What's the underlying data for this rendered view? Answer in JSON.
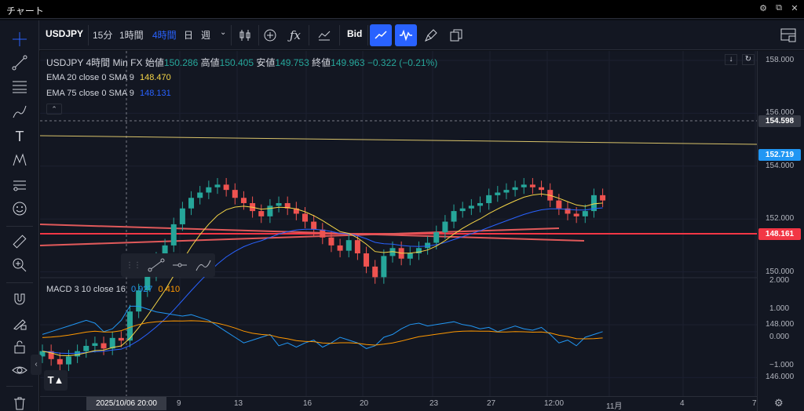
{
  "window": {
    "title": "チャート",
    "controls": [
      "⚙",
      "⧉",
      "✕"
    ]
  },
  "toolbar": {
    "symbol": "USDJPY",
    "intervals": [
      "15分",
      "1時間",
      "4時間",
      "日",
      "週"
    ],
    "active_interval": "4時間",
    "price_type": "Bid",
    "icons": [
      "candles-icon",
      "add-indicator-icon",
      "fx-icon",
      "compare-icon",
      "bid-label",
      "line-chart-icon",
      "wave-icon",
      "brush-icon",
      "clone-icon",
      "layout-icon"
    ]
  },
  "legend": {
    "symbol": "USDJPY",
    "interval": "4時間",
    "source": "Min FX",
    "open_label": "始値",
    "open": "150.286",
    "high_label": "高値",
    "high": "150.405",
    "low_label": "安値",
    "low": "149.753",
    "close_label": "終値",
    "close": "149.963",
    "change": "−0.322 (−0.21%)",
    "ema1_label": "EMA 20 close 0 SMA 9",
    "ema1_value": "148.470",
    "ema2_label": "EMA 75 close 0 SMA 9",
    "ema2_value": "148.131",
    "macd_label": "MACD 3 10 close 16",
    "macd_value": "0.927",
    "signal_value": "0.410"
  },
  "price_axis": {
    "labels": [
      "158.000",
      "156.000",
      "154.000",
      "152.000",
      "150.000",
      "148.000",
      "146.000"
    ],
    "crosshair_price": "154.598",
    "last_price": "152.719",
    "hline_price": "148.161"
  },
  "macd_axis": {
    "labels": [
      "2.000",
      "1.000",
      "0.000",
      "−1.000"
    ]
  },
  "time_axis": {
    "crosshair_date": "2025/10/06",
    "crosshair_time": "20:00",
    "labels": [
      "9",
      "13",
      "16",
      "20",
      "23",
      "27",
      "12:00",
      "11月",
      "4",
      "7"
    ]
  },
  "colors": {
    "up": "#26a69a",
    "down": "#ef5350",
    "ema20": "#f5d547",
    "ema75": "#2962ff",
    "macd": "#2196f3",
    "signal": "#ff9800",
    "hline": "#f23645",
    "last": "#2196f3"
  }
}
